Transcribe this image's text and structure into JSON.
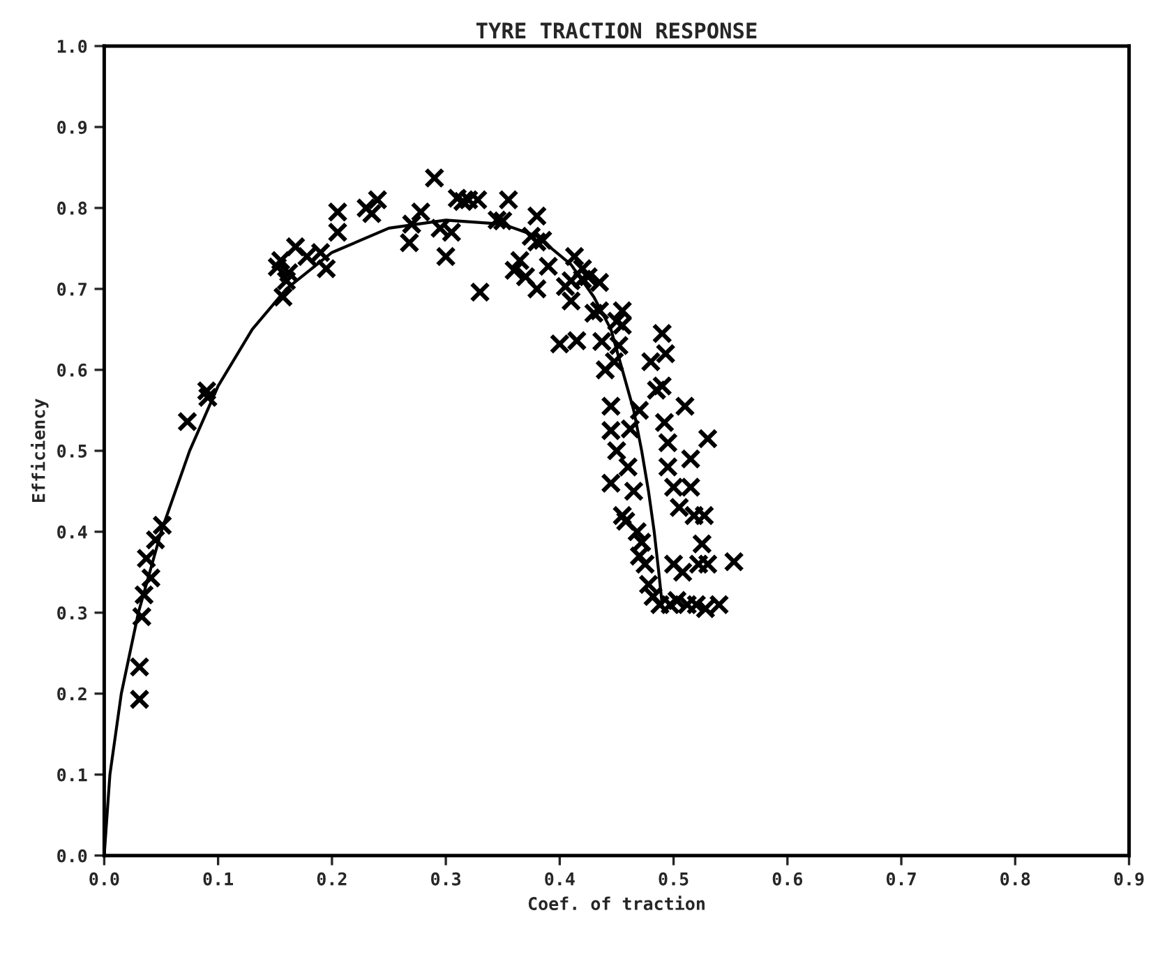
{
  "chart_data": {
    "type": "scatter",
    "title": "TYRE TRACTION RESPONSE",
    "xlabel": "Coef. of traction",
    "ylabel": "Efficiency",
    "xlim": [
      0,
      0.9
    ],
    "ylim": [
      0,
      1
    ],
    "xticks": [
      {
        "value": 0,
        "label": "0.0"
      },
      0.1,
      0.2,
      0.3,
      0.4,
      0.5,
      0.6,
      0.7,
      0.8,
      0.9
    ],
    "yticks": [
      {
        "value": 0,
        "label": "0.0"
      },
      0.1,
      0.2,
      0.3,
      0.4,
      0.5,
      0.6,
      0.7,
      0.8,
      0.9,
      {
        "value": 1,
        "label": "1.0"
      }
    ],
    "grid": false,
    "legend": false,
    "series": [
      {
        "color": "#000000",
        "marker": "cross",
        "x": [
          0.031,
          0.031,
          0.033,
          0.035,
          0.037,
          0.041,
          0.045,
          0.051,
          0.073,
          0.09,
          0.091,
          0.152,
          0.155,
          0.157,
          0.16,
          0.162,
          0.168,
          0.178,
          0.19,
          0.195,
          0.205,
          0.205,
          0.23,
          0.235,
          0.24,
          0.268,
          0.27,
          0.278,
          0.29,
          0.295,
          0.3,
          0.305,
          0.31,
          0.315,
          0.32,
          0.328,
          0.33,
          0.345,
          0.35,
          0.355,
          0.36,
          0.365,
          0.37,
          0.375,
          0.38,
          0.38,
          0.385,
          0.38,
          0.39,
          0.4,
          0.405,
          0.41,
          0.41,
          0.413,
          0.415,
          0.42,
          0.42,
          0.425,
          0.43,
          0.435,
          0.435,
          0.437,
          0.44,
          0.445,
          0.445,
          0.448,
          0.45,
          0.452,
          0.445,
          0.45,
          0.455,
          0.455,
          0.455,
          0.458,
          0.46,
          0.462,
          0.465,
          0.468,
          0.47,
          0.47,
          0.472,
          0.475,
          0.478,
          0.48,
          0.482,
          0.485,
          0.488,
          0.49,
          0.49,
          0.492,
          0.493,
          0.495,
          0.495,
          0.497,
          0.5,
          0.5,
          0.503,
          0.505,
          0.508,
          0.51,
          0.512,
          0.515,
          0.515,
          0.518,
          0.52,
          0.522,
          0.525,
          0.527,
          0.528,
          0.53,
          0.53,
          0.54,
          0.553
        ],
        "values": [
          0.193,
          0.233,
          0.295,
          0.322,
          0.367,
          0.343,
          0.39,
          0.408,
          0.536,
          0.574,
          0.566,
          0.727,
          0.735,
          0.69,
          0.71,
          0.72,
          0.752,
          0.74,
          0.745,
          0.725,
          0.795,
          0.77,
          0.8,
          0.793,
          0.81,
          0.757,
          0.78,
          0.795,
          0.837,
          0.775,
          0.74,
          0.77,
          0.812,
          0.808,
          0.81,
          0.81,
          0.696,
          0.785,
          0.784,
          0.81,
          0.723,
          0.735,
          0.715,
          0.765,
          0.79,
          0.758,
          0.76,
          0.7,
          0.728,
          0.632,
          0.703,
          0.71,
          0.685,
          0.74,
          0.636,
          0.725,
          0.712,
          0.715,
          0.67,
          0.673,
          0.708,
          0.635,
          0.6,
          0.555,
          0.525,
          0.61,
          0.66,
          0.63,
          0.46,
          0.5,
          0.655,
          0.673,
          0.42,
          0.413,
          0.48,
          0.527,
          0.45,
          0.4,
          0.55,
          0.37,
          0.387,
          0.36,
          0.335,
          0.61,
          0.32,
          0.575,
          0.31,
          0.645,
          0.58,
          0.535,
          0.62,
          0.51,
          0.48,
          0.31,
          0.455,
          0.36,
          0.315,
          0.43,
          0.35,
          0.555,
          0.31,
          0.49,
          0.455,
          0.42,
          0.31,
          0.36,
          0.385,
          0.42,
          0.305,
          0.515,
          0.36,
          0.31,
          0.363
        ]
      },
      {
        "type": "line",
        "color": "#000000",
        "marker": "none",
        "line_style": "solid",
        "x": [
          0,
          0.005,
          0.015,
          0.03,
          0.05,
          0.075,
          0.1,
          0.13,
          0.16,
          0.2,
          0.25,
          0.3,
          0.35,
          0.38,
          0.41,
          0.43,
          0.445,
          0.455,
          0.465,
          0.472,
          0.478,
          0.483,
          0.487,
          0.49
        ],
        "values": [
          0,
          0.1,
          0.2,
          0.3,
          0.4,
          0.5,
          0.58,
          0.65,
          0.7,
          0.745,
          0.775,
          0.785,
          0.78,
          0.765,
          0.73,
          0.69,
          0.65,
          0.6,
          0.55,
          0.5,
          0.45,
          0.4,
          0.35,
          0.31
        ]
      }
    ]
  }
}
